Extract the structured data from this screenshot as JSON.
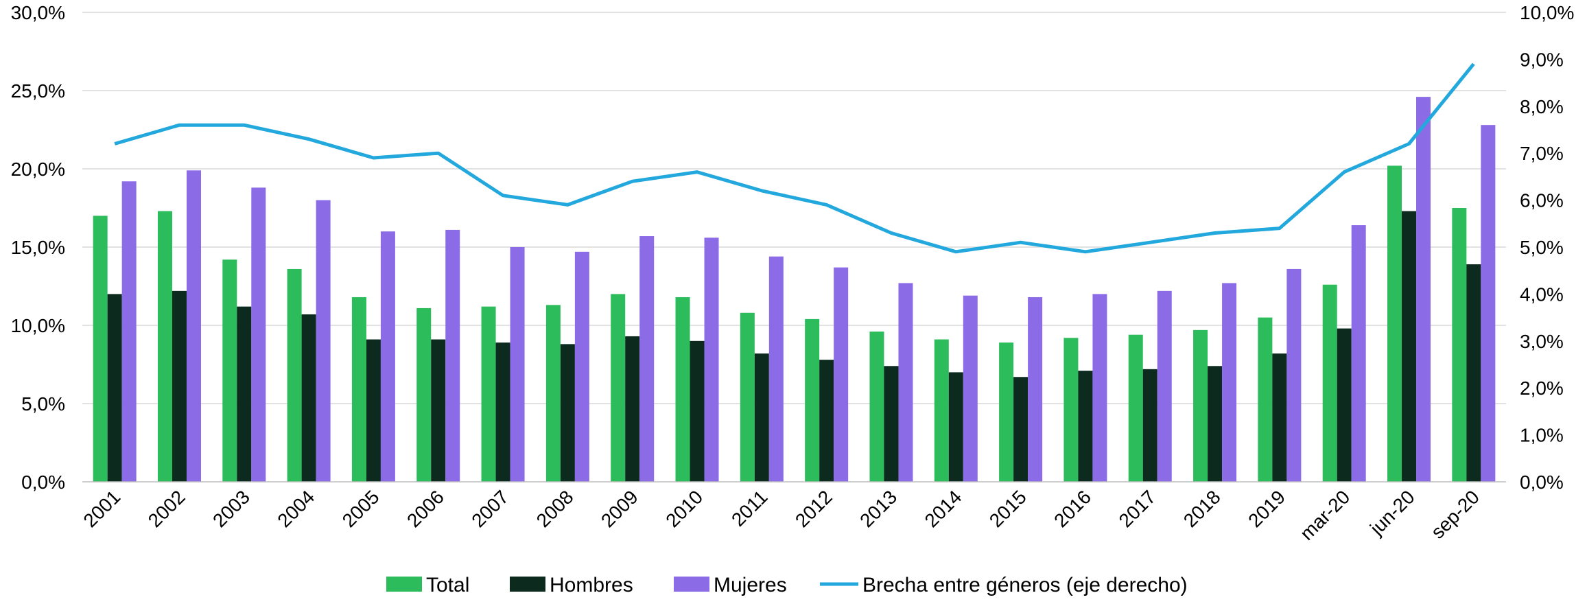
{
  "chart_data": {
    "type": "bar",
    "categories": [
      "2001",
      "2002",
      "2003",
      "2004",
      "2005",
      "2006",
      "2007",
      "2008",
      "2009",
      "2010",
      "2011",
      "2012",
      "2013",
      "2014",
      "2015",
      "2016",
      "2017",
      "2018",
      "2019",
      "mar-20",
      "jun-20",
      "sep-20"
    ],
    "series": [
      {
        "name": "Total",
        "kind": "bar",
        "axis": "left",
        "color": "#2dbc5b",
        "values": [
          17.0,
          17.3,
          14.2,
          13.6,
          11.8,
          11.1,
          11.2,
          11.3,
          12.0,
          11.8,
          10.8,
          10.4,
          9.6,
          9.1,
          8.9,
          9.2,
          9.4,
          9.7,
          10.5,
          12.6,
          20.2,
          17.5
        ]
      },
      {
        "name": "Hombres",
        "kind": "bar",
        "axis": "left",
        "color": "#0c2a1e",
        "values": [
          12.0,
          12.2,
          11.2,
          10.7,
          9.1,
          9.1,
          8.9,
          8.8,
          9.3,
          9.0,
          8.2,
          7.8,
          7.4,
          7.0,
          6.7,
          7.1,
          7.2,
          7.4,
          8.2,
          9.8,
          17.3,
          13.9
        ]
      },
      {
        "name": "Mujeres",
        "kind": "bar",
        "axis": "left",
        "color": "#8c6be6",
        "values": [
          19.2,
          19.9,
          18.8,
          18.0,
          16.0,
          16.1,
          15.0,
          14.7,
          15.7,
          15.6,
          14.4,
          13.7,
          12.7,
          11.9,
          11.8,
          12.0,
          12.2,
          12.7,
          13.6,
          16.4,
          24.6,
          22.8
        ]
      },
      {
        "name": "Brecha entre géneros (eje derecho)",
        "kind": "line",
        "axis": "right",
        "color": "#22a8dc",
        "values": [
          7.2,
          7.6,
          7.6,
          7.3,
          6.9,
          7.0,
          6.1,
          5.9,
          6.4,
          6.6,
          6.2,
          5.9,
          5.3,
          4.9,
          5.1,
          4.9,
          5.1,
          5.3,
          5.4,
          6.6,
          7.2,
          8.9
        ]
      }
    ],
    "y_left": {
      "ylim": [
        0,
        30
      ],
      "ticks": [
        "0,0%",
        "5,0%",
        "10,0%",
        "15,0%",
        "20,0%",
        "25,0%",
        "30,0%"
      ]
    },
    "y_right": {
      "ylim": [
        0,
        10
      ],
      "ticks": [
        "0,0%",
        "1,0%",
        "2,0%",
        "3,0%",
        "4,0%",
        "5,0%",
        "6,0%",
        "7,0%",
        "8,0%",
        "9,0%",
        "10,0%"
      ]
    },
    "grid": true,
    "legend_position": "bottom"
  }
}
